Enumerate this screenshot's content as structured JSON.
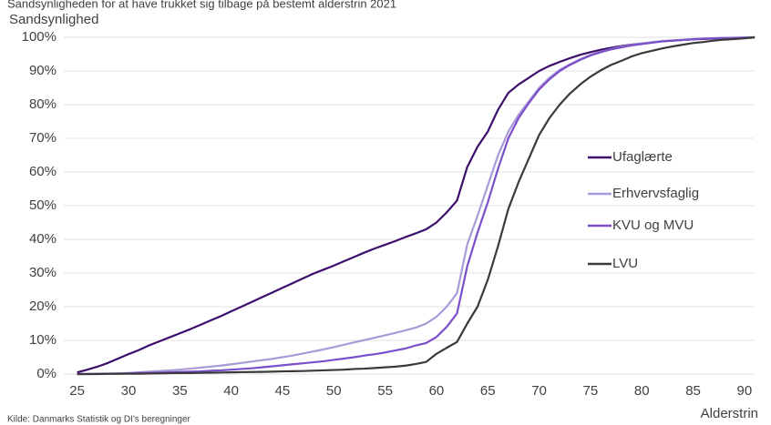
{
  "chart_data": {
    "type": "line",
    "title": "Sandsynligheden for at have trukket sig tilbage på bestemt alderstrin 2021",
    "y_label": "Sandsynlighed",
    "x_label": "Alderstrin",
    "source": "Kilde: Danmarks Statistik og DI's beregninger",
    "x": [
      25,
      26,
      27,
      28,
      29,
      30,
      31,
      32,
      33,
      34,
      35,
      36,
      37,
      38,
      39,
      40,
      41,
      42,
      43,
      44,
      45,
      46,
      47,
      48,
      49,
      50,
      51,
      52,
      53,
      54,
      55,
      56,
      57,
      58,
      59,
      60,
      61,
      62,
      63,
      64,
      65,
      66,
      67,
      68,
      69,
      70,
      71,
      72,
      73,
      74,
      75,
      76,
      77,
      78,
      79,
      80,
      81,
      82,
      83,
      84,
      85,
      86,
      87,
      88,
      89,
      90,
      91
    ],
    "series": [
      {
        "name": "Ufaglærte",
        "color": "#3b0f6b",
        "values": [
          0.5,
          1.3,
          2.2,
          3.3,
          4.6,
          5.9,
          7.1,
          8.5,
          9.7,
          10.9,
          12.1,
          13.3,
          14.6,
          15.9,
          17.2,
          18.6,
          20,
          21.4,
          22.8,
          24.2,
          25.6,
          27,
          28.4,
          29.8,
          31,
          32.2,
          33.5,
          34.8,
          36.1,
          37.3,
          38.4,
          39.5,
          40.7,
          41.8,
          43,
          45,
          48,
          51.5,
          61.5,
          67.5,
          72,
          78.5,
          83.5,
          86,
          88,
          90,
          91.5,
          92.7,
          93.8,
          94.8,
          95.6,
          96.3,
          96.9,
          97.4,
          97.8,
          98.2,
          98.5,
          98.8,
          99,
          99.2,
          99.4,
          99.5,
          99.6,
          99.7,
          99.8,
          99.9,
          100
        ]
      },
      {
        "name": "Erhvervsfaglig",
        "color": "#a99bd9",
        "values": [
          0,
          0.05,
          0.1,
          0.15,
          0.2,
          0.3,
          0.5,
          0.7,
          0.9,
          1.1,
          1.3,
          1.6,
          1.9,
          2.2,
          2.5,
          2.9,
          3.3,
          3.7,
          4.1,
          4.5,
          5,
          5.5,
          6.1,
          6.7,
          7.3,
          8,
          8.7,
          9.4,
          10.1,
          10.8,
          11.5,
          12.2,
          13,
          13.8,
          15,
          17,
          20,
          24,
          38.5,
          47,
          56,
          65,
          72,
          77,
          81,
          85,
          88,
          90.3,
          92,
          93.5,
          94.8,
          95.7,
          96.5,
          97.2,
          97.7,
          98.2,
          98.6,
          98.9,
          99.1,
          99.3,
          99.5,
          99.6,
          99.7,
          99.8,
          99.9,
          99.9,
          100
        ]
      },
      {
        "name": "KVU og MVU",
        "color": "#7b4fc9",
        "values": [
          0,
          0,
          0.05,
          0.1,
          0.15,
          0.2,
          0.3,
          0.35,
          0.4,
          0.5,
          0.6,
          0.7,
          0.8,
          1,
          1.1,
          1.3,
          1.5,
          1.7,
          2,
          2.3,
          2.6,
          2.9,
          3.2,
          3.5,
          3.8,
          4.2,
          4.6,
          5,
          5.5,
          5.9,
          6.4,
          7,
          7.6,
          8.5,
          9.2,
          11,
          14,
          18,
          32,
          42,
          51,
          61,
          70,
          76,
          80.5,
          84.5,
          87.5,
          90,
          91.8,
          93.3,
          94.6,
          95.6,
          96.4,
          97,
          97.6,
          98,
          98.4,
          98.8,
          99,
          99.2,
          99.4,
          99.6,
          99.7,
          99.8,
          99.8,
          99.9,
          100
        ]
      },
      {
        "name": "LVU",
        "color": "#3a3a3a",
        "values": [
          0,
          0,
          0,
          0.05,
          0.05,
          0.1,
          0.1,
          0.15,
          0.2,
          0.25,
          0.3,
          0.3,
          0.35,
          0.4,
          0.45,
          0.5,
          0.55,
          0.6,
          0.65,
          0.7,
          0.8,
          0.85,
          0.9,
          1,
          1.1,
          1.2,
          1.3,
          1.5,
          1.6,
          1.8,
          2,
          2.2,
          2.5,
          3,
          3.6,
          6,
          7.8,
          9.5,
          15,
          20,
          28,
          38,
          49,
          57,
          64,
          71,
          76,
          80,
          83.3,
          86,
          88.3,
          90.2,
          91.8,
          93,
          94.3,
          95.3,
          96,
          96.7,
          97.3,
          97.8,
          98.3,
          98.6,
          99,
          99.3,
          99.5,
          99.7,
          100
        ]
      }
    ],
    "xlim": [
      23.7,
      90.9
    ],
    "xticks": [
      25,
      30,
      35,
      40,
      45,
      50,
      55,
      60,
      65,
      70,
      75,
      80,
      85,
      90
    ],
    "ylim": [
      0,
      100
    ],
    "yticks": [
      {
        "value": 0,
        "label": "0%"
      },
      {
        "value": 10,
        "label": "10%"
      },
      {
        "value": 20,
        "label": "20%"
      },
      {
        "value": 30,
        "label": "30%"
      },
      {
        "value": 40,
        "label": "40%"
      },
      {
        "value": 50,
        "label": "50%"
      },
      {
        "value": 60,
        "label": "60%"
      },
      {
        "value": 70,
        "label": "70%"
      },
      {
        "value": 80,
        "label": "80%"
      },
      {
        "value": 90,
        "label": "90%"
      },
      {
        "value": 100,
        "label": "100%"
      }
    ],
    "grid": true,
    "legend": "right"
  }
}
